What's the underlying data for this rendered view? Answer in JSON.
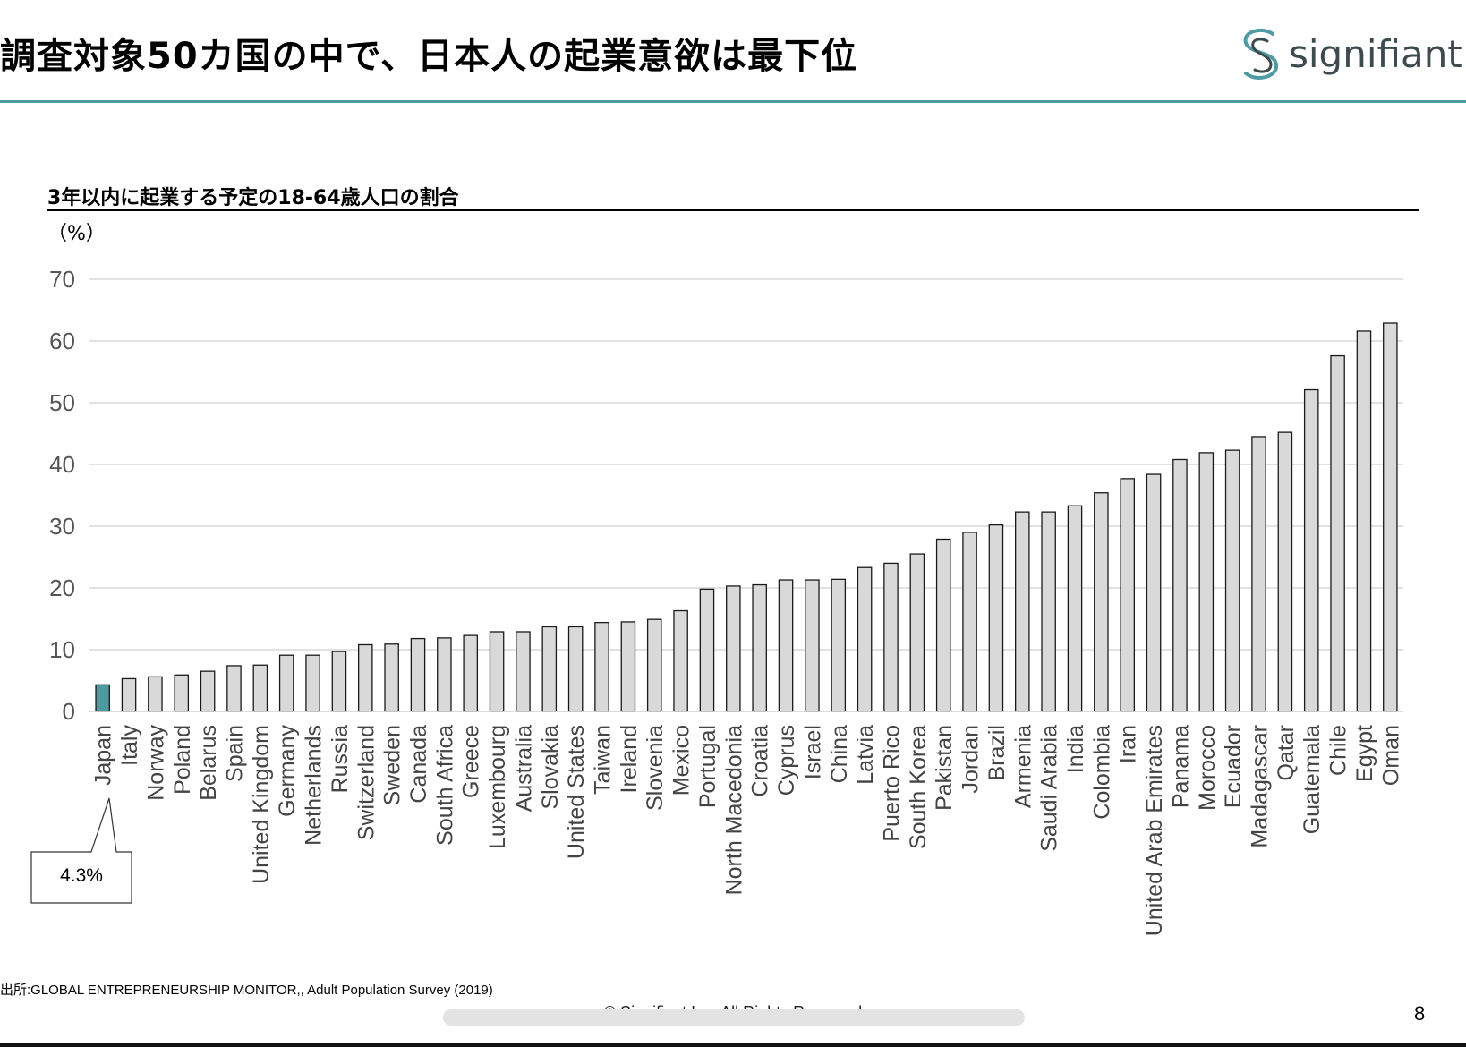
{
  "slide": {
    "title": "調査対象50カ国の中で、日本人の起業意欲は最下位",
    "logo_text": "signifiant",
    "page_number": "8",
    "copyright": "© Signifiant Inc. All Rights Reserved",
    "source": "出所:GLOBAL ENTREPRENEURSHIP MONITOR,, Adult Population Survey (2019)",
    "accent_color": "#4d9ca3",
    "callout_text": "4.3%"
  },
  "chart_data": {
    "type": "bar",
    "title": "3年以内に起業する予定の18-64歳人口の割合",
    "unit_label": "（%）",
    "ylim": [
      0,
      70
    ],
    "yticks": [
      "0",
      "10",
      "20",
      "30",
      "40",
      "50",
      "60",
      "70"
    ],
    "grid": true,
    "highlight_category": "Japan",
    "highlight_color": "#4a9aa0",
    "bar_color": "#d9d9d9",
    "categories": [
      "Japan",
      "Italy",
      "Norway",
      "Poland",
      "Belarus",
      "Spain",
      "United Kingdom",
      "Germany",
      "Netherlands",
      "Russia",
      "Switzerland",
      "Sweden",
      "Canada",
      "South Africa",
      "Greece",
      "Luxembourg",
      "Australia",
      "Slovakia",
      "United States",
      "Taiwan",
      "Ireland",
      "Slovenia",
      "Mexico",
      "Portugal",
      "North Macedonia",
      "Croatia",
      "Cyprus",
      "Israel",
      "China",
      "Latvia",
      "Puerto Rico",
      "South Korea",
      "Pakistan",
      "Jordan",
      "Brazil",
      "Armenia",
      "Saudi Arabia",
      "India",
      "Colombia",
      "Iran",
      "United Arab Emirates",
      "Panama",
      "Morocco",
      "Ecuador",
      "Madagascar",
      "Qatar",
      "Guatemala",
      "Chile",
      "Egypt",
      "Oman"
    ],
    "values": [
      4.3,
      5.3,
      5.6,
      5.9,
      6.5,
      7.4,
      7.5,
      9.1,
      9.1,
      9.7,
      10.8,
      10.9,
      11.8,
      11.9,
      12.3,
      12.9,
      12.9,
      13.7,
      13.7,
      14.4,
      14.5,
      14.9,
      16.3,
      19.8,
      20.3,
      20.5,
      21.3,
      21.3,
      21.4,
      23.3,
      24.0,
      25.5,
      27.9,
      29.0,
      30.2,
      32.3,
      32.3,
      33.3,
      35.4,
      37.7,
      38.4,
      40.8,
      41.9,
      42.3,
      44.5,
      45.2,
      52.1,
      57.6,
      61.6,
      62.9
    ]
  }
}
